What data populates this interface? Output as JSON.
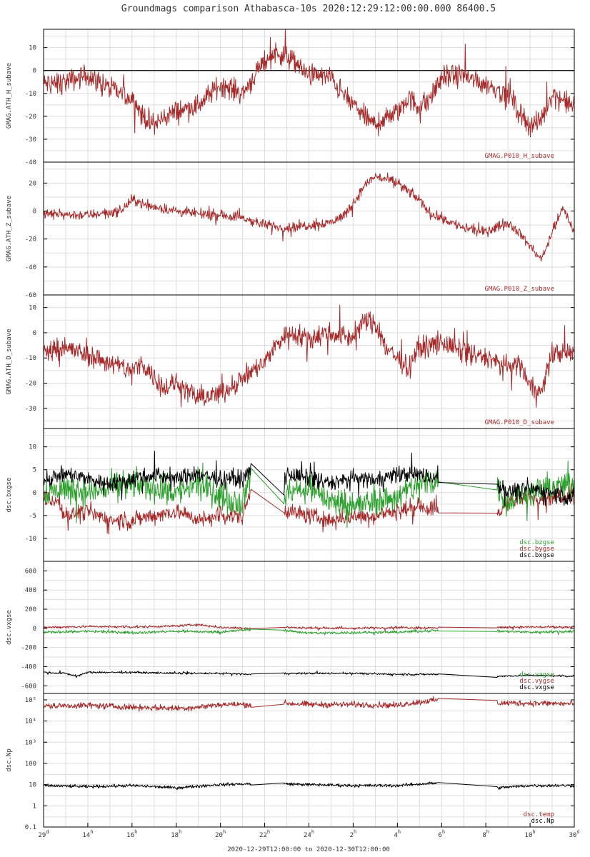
{
  "title": "Groundmags comparison Athabasca-10s 2020:12:29:12:00:00.000 86400.5",
  "time_range_label": "2020-12-29T12:00:00 to 2020-12-30T12:00:00",
  "colors": {
    "red": "#a52a2a",
    "green": "#2ca02c",
    "black": "#000000",
    "grid": "#dddddd"
  },
  "x_axis": {
    "ticks": [
      {
        "hour": 12,
        "label": "29",
        "sup": "d"
      },
      {
        "hour": 14,
        "label": "14",
        "sup": "h"
      },
      {
        "hour": 16,
        "label": "16",
        "sup": "h"
      },
      {
        "hour": 18,
        "label": "18",
        "sup": "h"
      },
      {
        "hour": 20,
        "label": "20",
        "sup": "h"
      },
      {
        "hour": 22,
        "label": "22",
        "sup": "h"
      },
      {
        "hour": 24,
        "label": "24",
        "sup": "h"
      },
      {
        "hour": 26,
        "label": "2",
        "sup": "h"
      },
      {
        "hour": 28,
        "label": "4",
        "sup": "h"
      },
      {
        "hour": 30,
        "label": "6",
        "sup": "h"
      },
      {
        "hour": 32,
        "label": "8",
        "sup": "h"
      },
      {
        "hour": 34,
        "label": "10",
        "sup": "h"
      },
      {
        "hour": 36,
        "label": "30",
        "sup": "d"
      }
    ],
    "range": [
      12,
      36
    ]
  },
  "chart_data": [
    {
      "type": "line",
      "ylabel": "GMAG.ATH_H_subave",
      "ylim": [
        -40,
        18
      ],
      "yticks": [
        10,
        0,
        -10,
        -20,
        -30,
        -40
      ],
      "ytick_labels": [
        "10",
        "0",
        "-10",
        "-20",
        "-30",
        "-40"
      ],
      "zero_line": true,
      "legend": [
        "GMAG.P010_H_subave"
      ],
      "legend_colors": [
        "red"
      ],
      "series": [
        {
          "color": "red",
          "noise": 4,
          "x": [
            12,
            13,
            14,
            15,
            16,
            16.5,
            17,
            17.5,
            18,
            19,
            20,
            21,
            21.5,
            22,
            22.5,
            23,
            23.5,
            24,
            25,
            25.5,
            26,
            26.5,
            27,
            28,
            28.5,
            29,
            29.5,
            30,
            31,
            32,
            33,
            33.5,
            34,
            34.5,
            35,
            36
          ],
          "y": [
            -6,
            -5,
            -2,
            -8,
            -12,
            -20,
            -24,
            -20,
            -18,
            -15,
            -6,
            -10,
            -3,
            4,
            8,
            6,
            2,
            -2,
            -3,
            -10,
            -15,
            -20,
            -24,
            -18,
            -12,
            -16,
            -12,
            -3,
            -2,
            -6,
            -10,
            -18,
            -24,
            -22,
            -10,
            -16
          ]
        }
      ]
    },
    {
      "type": "line",
      "ylabel": "GMAG.ATH_Z_subave",
      "ylim": [
        -60,
        35
      ],
      "yticks": [
        20,
        0,
        -20,
        -40,
        -60
      ],
      "ytick_labels": [
        "20",
        "0",
        "-20",
        "-40",
        "-60"
      ],
      "legend": [
        "GMAG.P010_Z_subave"
      ],
      "legend_colors": [
        "red"
      ],
      "series": [
        {
          "color": "red",
          "noise": 3,
          "x": [
            12,
            14,
            15.5,
            16,
            17,
            18,
            19,
            20,
            21,
            22,
            23,
            24,
            25,
            25.5,
            26,
            26.5,
            27,
            28,
            29,
            29.5,
            30,
            31,
            32,
            33,
            33.5,
            34,
            34.5,
            35,
            35.5,
            36
          ],
          "y": [
            -2,
            -3,
            0,
            8,
            3,
            0,
            -2,
            -3,
            -5,
            -10,
            -12,
            -10,
            -8,
            -4,
            5,
            18,
            25,
            20,
            8,
            -2,
            -5,
            -12,
            -15,
            -8,
            -15,
            -25,
            -35,
            -15,
            2,
            -15
          ]
        }
      ]
    },
    {
      "type": "line",
      "ylabel": "GMAG.ATH_D_subave",
      "ylim": [
        -38,
        15
      ],
      "yticks": [
        10,
        0,
        -10,
        -20,
        -30
      ],
      "ytick_labels": [
        "10",
        "0",
        "-10",
        "-20",
        "-30"
      ],
      "legend": [
        "GMAG.P010_D_subave"
      ],
      "legend_colors": [
        "red"
      ],
      "series": [
        {
          "color": "red",
          "noise": 3.5,
          "x": [
            12,
            13,
            14,
            15,
            16,
            16.5,
            17,
            17.5,
            18,
            19,
            20,
            21,
            22,
            22.5,
            23,
            24,
            25,
            26,
            26.5,
            27,
            27.5,
            28,
            28.5,
            29,
            30,
            31,
            32,
            33,
            33.5,
            34,
            34.5,
            35,
            36
          ],
          "y": [
            -8,
            -6,
            -9,
            -12,
            -15,
            -12,
            -18,
            -22,
            -20,
            -26,
            -24,
            -18,
            -12,
            -5,
            0,
            -2,
            0,
            -2,
            5,
            3,
            -6,
            -10,
            -14,
            -6,
            -4,
            -8,
            -10,
            -14,
            -12,
            -20,
            -24,
            -8,
            -8
          ]
        }
      ]
    },
    {
      "type": "line",
      "ylabel": "dsc.bxgse",
      "ylim": [
        -15,
        14
      ],
      "yticks": [
        10,
        5,
        0,
        -5,
        -10
      ],
      "ytick_labels": [
        "10",
        "5",
        "0",
        "-5",
        "-10"
      ],
      "legend": [
        "dsc.bzgse",
        "dsc.bygse",
        "dsc.bxgse"
      ],
      "legend_colors": [
        "green",
        "red",
        "black"
      ],
      "series": [
        {
          "color": "red",
          "noise": 1.5,
          "gaps": [
            [
              21.4,
              22.85
            ],
            [
              29.85,
              32.5
            ]
          ],
          "x": [
            12,
            12.6,
            13,
            14,
            15,
            16,
            17,
            18,
            19,
            20,
            21,
            21.4,
            22.85,
            23,
            24,
            25,
            26,
            27,
            28,
            29,
            29.85,
            32.5,
            33,
            34,
            35,
            36
          ],
          "y": [
            -1,
            -2,
            -5,
            -4,
            -6,
            -6,
            -5,
            -4,
            -6,
            -5,
            -5,
            1,
            -3,
            -4,
            -5,
            -6,
            -5,
            -5,
            -4,
            -3,
            -4,
            -5,
            -2,
            -1,
            -1,
            0
          ]
        },
        {
          "color": "green",
          "noise": 2.5,
          "gaps": [
            [
              21.4,
              22.85
            ],
            [
              29.85,
              32.5
            ]
          ],
          "x": [
            12,
            13,
            14,
            15,
            16,
            17,
            18,
            19,
            20,
            21,
            21.4,
            22.85,
            23,
            24,
            25,
            26,
            27,
            28,
            29,
            29.85,
            32.5,
            33,
            34,
            35,
            36
          ],
          "y": [
            0,
            1,
            0,
            1,
            2,
            1,
            0,
            2,
            -1,
            -2,
            5,
            -2,
            0,
            1,
            -2,
            -3,
            -2,
            -1,
            2,
            3,
            1,
            -2,
            0,
            1,
            2
          ]
        },
        {
          "color": "black",
          "noise": 1.5,
          "gaps": [
            [
              21.4,
              22.85
            ],
            [
              29.85,
              32.5
            ]
          ],
          "x": [
            12,
            13,
            14,
            15,
            16,
            17,
            18,
            19,
            20,
            21,
            21.4,
            22.85,
            23,
            24,
            25,
            26,
            27,
            28,
            29,
            29.85,
            32.5,
            33,
            34,
            35,
            36
          ],
          "y": [
            3,
            4,
            3,
            2,
            3,
            4,
            3,
            4,
            3,
            3,
            5,
            1,
            4,
            3,
            2,
            3,
            3,
            4,
            4,
            3,
            2,
            0,
            1,
            0,
            -1
          ]
        }
      ]
    },
    {
      "type": "line",
      "ylabel": "dsc.vxgse",
      "ylim": [
        -680,
        700
      ],
      "yticks": [
        600,
        400,
        200,
        0,
        -200,
        -400,
        -600
      ],
      "ytick_labels": [
        "600",
        "400",
        "200",
        "0",
        "-200",
        "-400",
        "-600"
      ],
      "legend": [
        "dsc.vzgse",
        "dsc.vygse",
        "dsc.vxgse"
      ],
      "legend_colors": [
        "green",
        "red",
        "black"
      ],
      "series": [
        {
          "color": "red",
          "noise": 10,
          "gaps": [
            [
              21.4,
              22.85
            ],
            [
              29.85,
              32.5
            ]
          ],
          "x": [
            12,
            14,
            16,
            18,
            19,
            20,
            21,
            21.4,
            22.85,
            24,
            26,
            28,
            29.85,
            32.5,
            34,
            36
          ],
          "y": [
            10,
            20,
            15,
            25,
            40,
            10,
            5,
            0,
            10,
            5,
            0,
            10,
            5,
            10,
            15,
            10
          ]
        },
        {
          "color": "green",
          "noise": 12,
          "gaps": [
            [
              21.4,
              22.85
            ],
            [
              29.85,
              32.5
            ]
          ],
          "x": [
            12,
            14,
            16,
            18,
            20,
            21.4,
            22.85,
            24,
            26,
            28,
            29.85,
            32.5,
            34,
            36
          ],
          "y": [
            -40,
            -30,
            -45,
            -30,
            -40,
            -10,
            -20,
            -50,
            -45,
            -40,
            -20,
            -30,
            -40,
            -30
          ]
        },
        {
          "color": "black",
          "noise": 8,
          "gaps": [
            [
              21.4,
              22.85
            ],
            [
              29.85,
              32.5
            ]
          ],
          "x": [
            12,
            13,
            13.5,
            14,
            16,
            18,
            20,
            21.4,
            22.85,
            24,
            26,
            28,
            29.85,
            32.5,
            34,
            36
          ],
          "y": [
            -460,
            -470,
            -500,
            -460,
            -460,
            -470,
            -470,
            -480,
            -470,
            -470,
            -470,
            -480,
            -480,
            -500,
            -490,
            -500
          ]
        }
      ]
    },
    {
      "type": "line",
      "ylabel": "dsc.Np",
      "yscale": "log",
      "ylim": [
        0.1,
        200000
      ],
      "yticks": [
        100000,
        10000,
        1000,
        100,
        10,
        1,
        0.1
      ],
      "ytick_labels": [
        "10⁵",
        "10⁴",
        "10³",
        "100",
        "10",
        "1",
        "0.1"
      ],
      "legend": [
        "dsc.temp",
        "dsc.Np"
      ],
      "legend_colors": [
        "red",
        "black"
      ],
      "series": [
        {
          "color": "red",
          "noise": 0.12,
          "gaps": [
            [
              21.4,
              22.85
            ],
            [
              29.85,
              32.5
            ]
          ],
          "x": [
            12,
            14,
            16,
            18,
            19,
            20,
            21.4,
            22.85,
            24,
            26,
            28,
            29.85,
            32.5,
            34,
            36
          ],
          "y": [
            50000,
            55000,
            45000,
            40000,
            45000,
            60000,
            60000,
            70000,
            60000,
            60000,
            55000,
            100000,
            70000,
            70000,
            65000
          ]
        },
        {
          "color": "black",
          "noise": 0.06,
          "gaps": [
            [
              21.4,
              22.85
            ],
            [
              29.85,
              32.5
            ]
          ],
          "x": [
            12,
            14,
            16,
            18,
            20,
            21.4,
            22.85,
            24,
            26,
            28,
            29.85,
            32.5,
            34,
            36
          ],
          "y": [
            9,
            8,
            9,
            7,
            10,
            11,
            11,
            10,
            9,
            9,
            12,
            7,
            9,
            9
          ]
        }
      ]
    }
  ]
}
